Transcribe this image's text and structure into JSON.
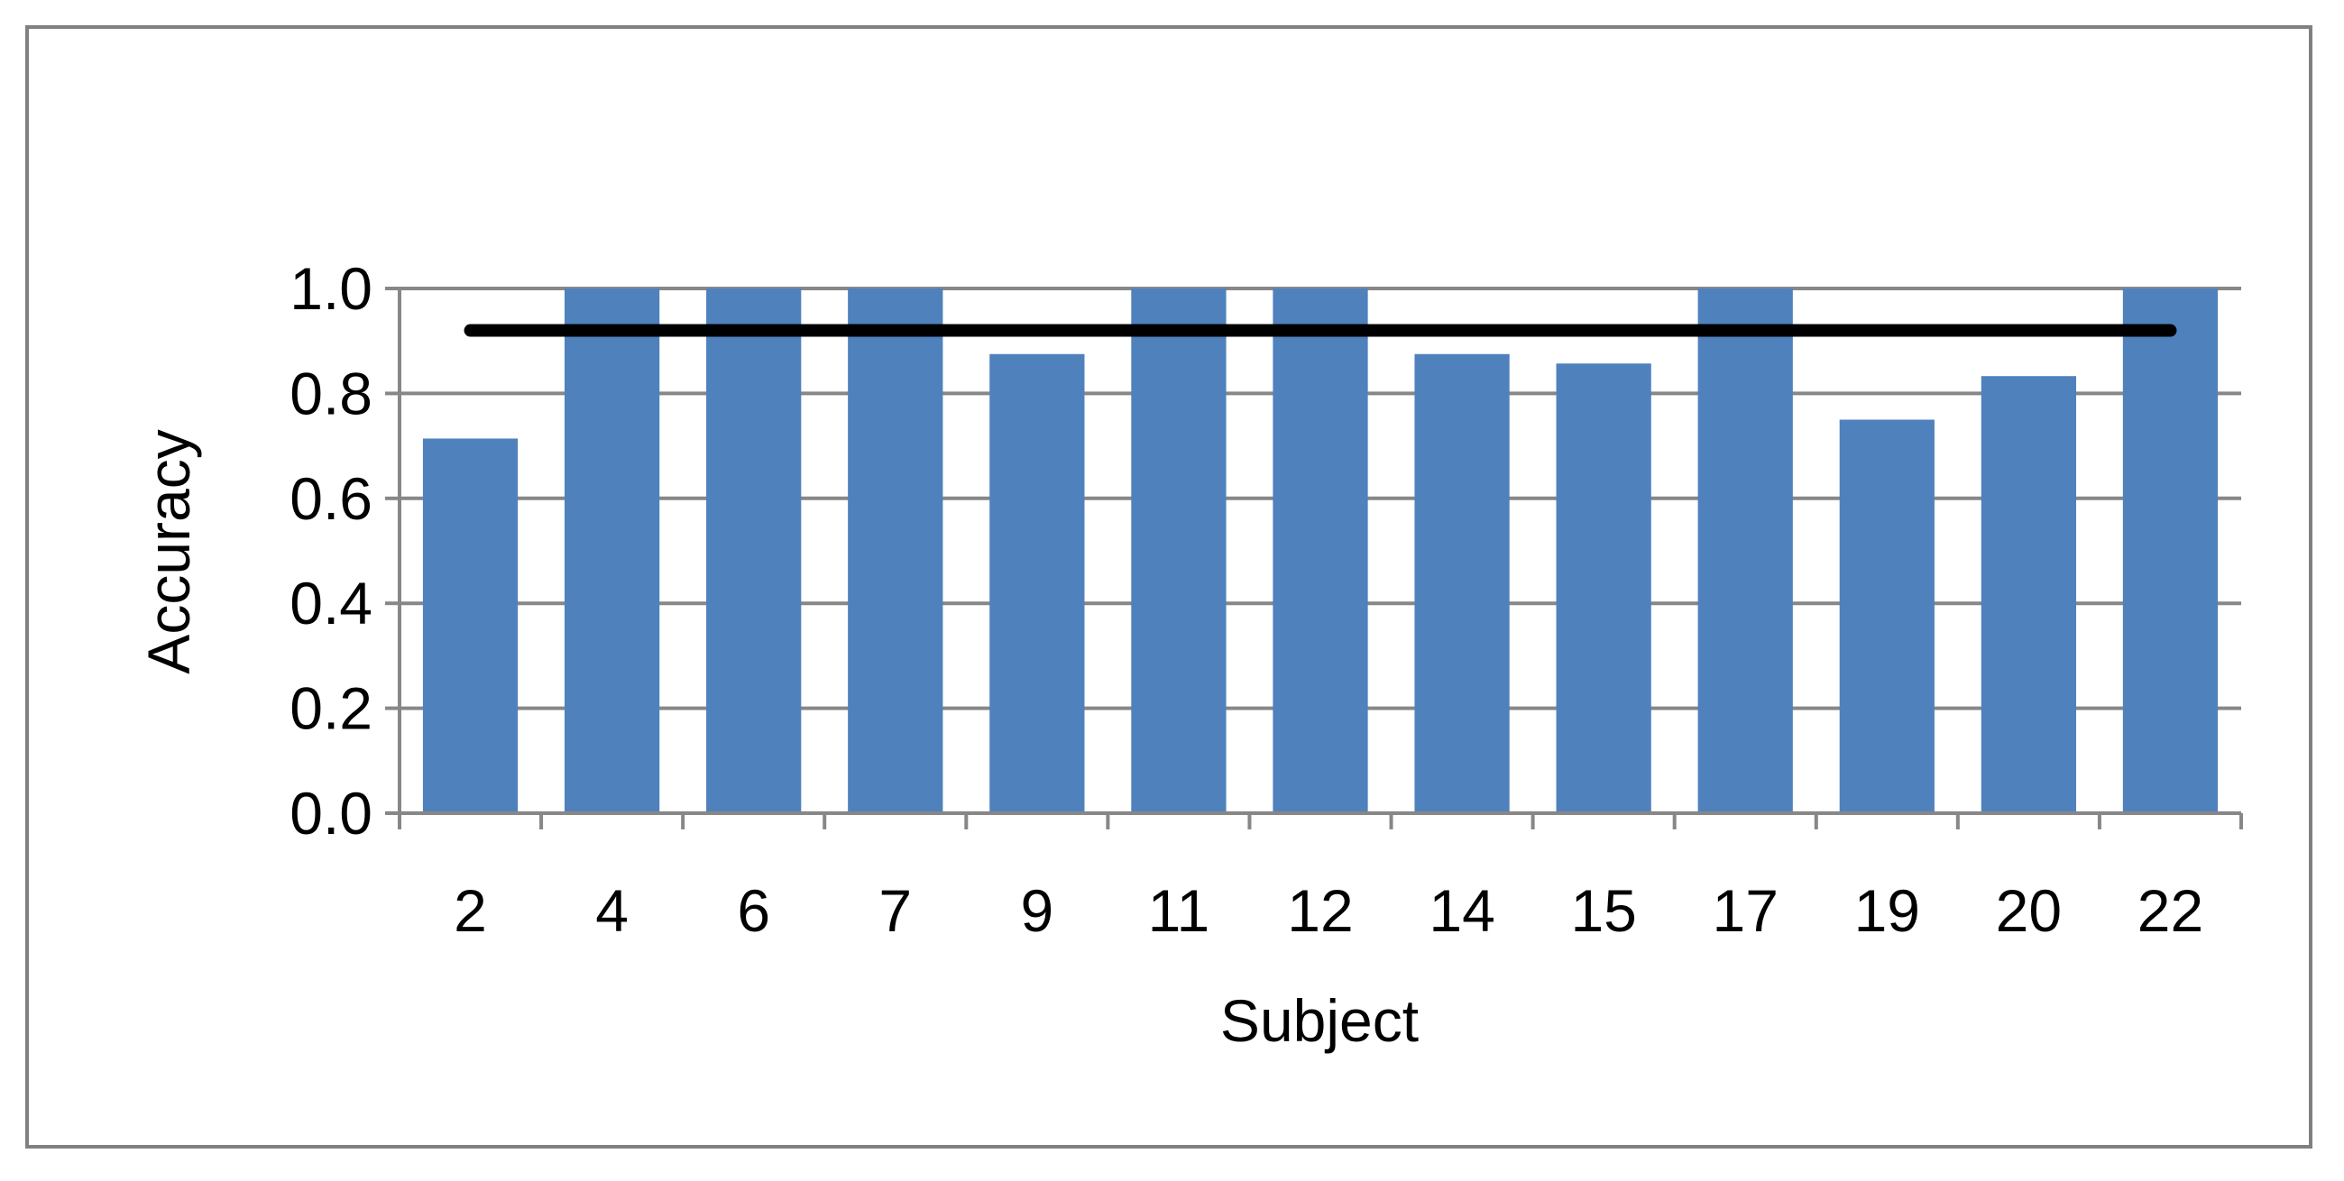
{
  "chart_data": {
    "type": "bar",
    "title": "",
    "xlabel": "Subject",
    "ylabel": "Accuracy",
    "categories": [
      "2",
      "4",
      "6",
      "7",
      "9",
      "11",
      "12",
      "14",
      "15",
      "17",
      "19",
      "20",
      "22"
    ],
    "series": [
      {
        "type": "bar",
        "values": [
          0.714,
          1.0,
          1.0,
          1.0,
          0.875,
          1.0,
          1.0,
          0.875,
          0.857,
          1.0,
          0.75,
          0.833,
          1.0
        ],
        "color": "#4F81BD"
      },
      {
        "type": "line",
        "values": [
          0.92,
          0.92,
          0.92,
          0.92,
          0.92,
          0.92,
          0.92,
          0.92,
          0.92,
          0.92,
          0.92,
          0.92,
          0.92
        ],
        "color": "#000000"
      }
    ],
    "ylim": [
      0,
      1.0
    ],
    "yticks": [
      "0.0",
      "0.2",
      "0.4",
      "0.6",
      "0.8",
      "1.0"
    ],
    "grid": true,
    "legend": "none",
    "colors": {
      "bar": "#4F81BD",
      "gridline": "#878787",
      "axis": "#878787",
      "line": "#000000"
    }
  }
}
